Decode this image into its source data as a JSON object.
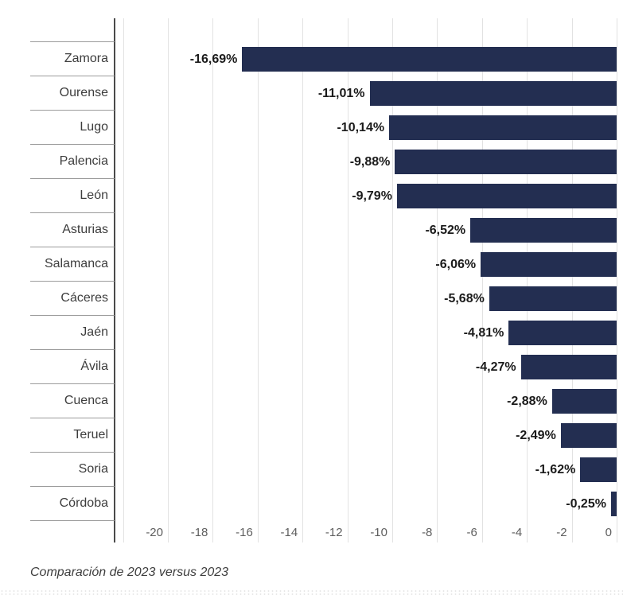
{
  "chart_data": {
    "type": "bar",
    "orientation": "horizontal",
    "title": "",
    "categories": [
      "Zamora",
      "Ourense",
      "Lugo",
      "Palencia",
      "León",
      "Asturias",
      "Salamanca",
      "Cáceres",
      "Jaén",
      "Ávila",
      "Cuenca",
      "Teruel",
      "Soria",
      "Córdoba"
    ],
    "values": [
      -16.69,
      -11.01,
      -10.14,
      -9.88,
      -9.79,
      -6.52,
      -6.06,
      -5.68,
      -4.81,
      -4.27,
      -2.88,
      -2.49,
      -1.62,
      -0.25
    ],
    "value_labels": [
      "-16,69%",
      "-11,01%",
      "-10,14%",
      "-9,88%",
      "-9,79%",
      "-6,52%",
      "-6,06%",
      "-5,68%",
      "-4,81%",
      "-4,27%",
      "-2,88%",
      "-2,49%",
      "-1,62%",
      "-0,25%"
    ],
    "x_ticks": [
      -20,
      -18,
      -16,
      -14,
      -12,
      -10,
      -8,
      -6,
      -4,
      -2,
      0
    ],
    "x_tick_labels": [
      "-20",
      "-18",
      "-16",
      "-14",
      "-12",
      "-10",
      "-8",
      "-6",
      "-4",
      "-2",
      "0"
    ],
    "xlim": [
      -22.4,
      0.3
    ],
    "grid": true,
    "legend": false,
    "bar_color": "#232e51",
    "footnote": "Comparación de 2023 versus 2023"
  }
}
